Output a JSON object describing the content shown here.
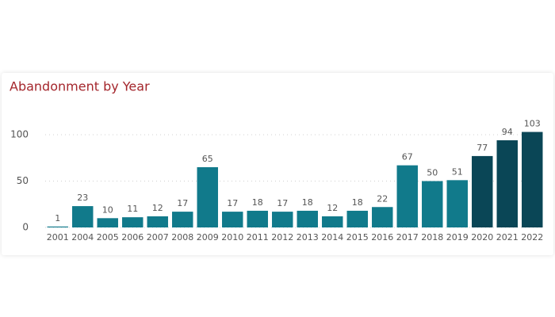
{
  "chart_data": {
    "type": "bar",
    "title": "Abandonment by Year",
    "categories": [
      "2001",
      "2004",
      "2005",
      "2006",
      "2007",
      "2008",
      "2009",
      "2010",
      "2011",
      "2012",
      "2013",
      "2014",
      "2015",
      "2016",
      "2017",
      "2018",
      "2019",
      "2020",
      "2021",
      "2022"
    ],
    "values": [
      1,
      23,
      10,
      11,
      12,
      17,
      65,
      17,
      18,
      17,
      18,
      12,
      18,
      22,
      67,
      50,
      51,
      77,
      94,
      103
    ],
    "colors": [
      "#117a8b",
      "#117a8b",
      "#117a8b",
      "#117a8b",
      "#117a8b",
      "#117a8b",
      "#117a8b",
      "#117a8b",
      "#117a8b",
      "#117a8b",
      "#117a8b",
      "#117a8b",
      "#117a8b",
      "#117a8b",
      "#117a8b",
      "#117a8b",
      "#117a8b",
      "#0a4656",
      "#0a4656",
      "#0a4656"
    ],
    "ylim": [
      0,
      110
    ],
    "yticks": [
      0,
      50,
      100
    ],
    "grid": true
  }
}
